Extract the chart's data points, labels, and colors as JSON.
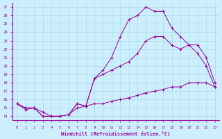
{
  "xlabel": "Windchill (Refroidissement éolien,°C)",
  "background_color": "#cceeff",
  "grid_color": "#aadddd",
  "line_color": "#990099",
  "xlim": [
    -0.5,
    23.5
  ],
  "ylim": [
    13.5,
    27.5
  ],
  "yticks": [
    14,
    15,
    16,
    17,
    18,
    19,
    20,
    21,
    22,
    23,
    24,
    25,
    26,
    27
  ],
  "xticks": [
    0,
    1,
    2,
    3,
    4,
    5,
    6,
    7,
    8,
    9,
    10,
    11,
    12,
    13,
    14,
    15,
    16,
    17,
    18,
    19,
    20,
    21,
    22,
    23
  ],
  "line1_x": [
    0,
    1,
    2,
    3,
    4,
    5,
    6,
    7,
    8,
    9,
    10,
    11,
    12,
    13,
    14,
    15,
    16,
    17,
    18,
    19,
    20,
    21,
    22,
    23
  ],
  "line1_y": [
    15.5,
    15.0,
    15.0,
    14.0,
    14.0,
    14.0,
    14.2,
    15.5,
    15.2,
    18.5,
    19.5,
    21.0,
    23.5,
    25.5,
    26.0,
    27.0,
    26.5,
    26.5,
    24.5,
    23.5,
    22.5,
    21.5,
    20.0,
    17.5
  ],
  "line2_x": [
    0,
    1,
    2,
    3,
    4,
    5,
    6,
    7,
    8,
    9,
    10,
    11,
    12,
    13,
    14,
    15,
    16,
    17,
    18,
    19,
    20,
    21,
    22,
    23
  ],
  "line2_y": [
    15.5,
    15.0,
    15.0,
    14.0,
    14.0,
    14.0,
    14.2,
    15.5,
    15.2,
    18.5,
    19.0,
    19.5,
    20.0,
    20.5,
    21.5,
    23.0,
    23.5,
    23.5,
    22.5,
    22.0,
    22.5,
    22.5,
    21.0,
    18.0
  ],
  "line3_x": [
    0,
    1,
    2,
    3,
    4,
    5,
    6,
    7,
    8,
    9,
    10,
    11,
    12,
    13,
    14,
    15,
    16,
    17,
    18,
    19,
    20,
    21,
    22,
    23
  ],
  "line3_y": [
    15.5,
    14.8,
    15.0,
    14.5,
    14.0,
    14.0,
    14.2,
    15.0,
    15.2,
    15.5,
    15.5,
    15.8,
    16.0,
    16.2,
    16.5,
    16.8,
    17.0,
    17.2,
    17.5,
    17.5,
    18.0,
    18.0,
    18.0,
    17.5
  ]
}
